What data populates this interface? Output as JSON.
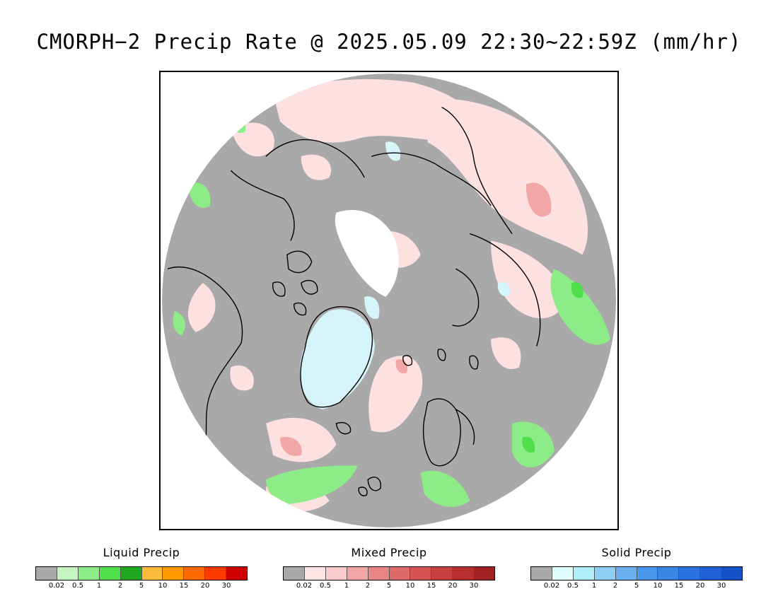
{
  "title": "CMORPH−2 Precip Rate @ 2025.05.09 22:30~22:59Z (mm/hr)",
  "map": {
    "projection": "north polar stereographic",
    "colors": {
      "ocean_no_precip": "#a9a9a9",
      "background": "#ffffff",
      "coastline": "#000000",
      "missing_data": "#ffffff"
    }
  },
  "legends": [
    {
      "key": "liquid",
      "title": "Liquid Precip",
      "labels": [
        "0.02",
        "0.5",
        "1",
        "2",
        "5",
        "10",
        "15",
        "20",
        "30"
      ],
      "colors": [
        "#a9a9a9",
        "#c4f5c0",
        "#8eec88",
        "#4fdf4a",
        "#20a81f",
        "#fdbb3c",
        "#fd9a00",
        "#fd6a00",
        "#fd3a00",
        "#cc0000"
      ]
    },
    {
      "key": "mixed",
      "title": "Mixed Precip",
      "labels": [
        "0.02",
        "0.5",
        "1",
        "2",
        "5",
        "10",
        "15",
        "20",
        "30"
      ],
      "colors": [
        "#a9a9a9",
        "#fde5e5",
        "#fbcccc",
        "#f3a6a6",
        "#e88585",
        "#de6a6a",
        "#d45454",
        "#c84040",
        "#b82e2e",
        "#a12222"
      ]
    },
    {
      "key": "solid",
      "title": "Solid Precip",
      "labels": [
        "0.02",
        "0.5",
        "1",
        "2",
        "5",
        "10",
        "15",
        "20",
        "30"
      ],
      "colors": [
        "#a9a9a9",
        "#e0fdfd",
        "#b0eef8",
        "#8ecdf5",
        "#6aaff0",
        "#4a98ec",
        "#3a86e6",
        "#2a72e0",
        "#1f60d8",
        "#1552c8"
      ]
    }
  ]
}
